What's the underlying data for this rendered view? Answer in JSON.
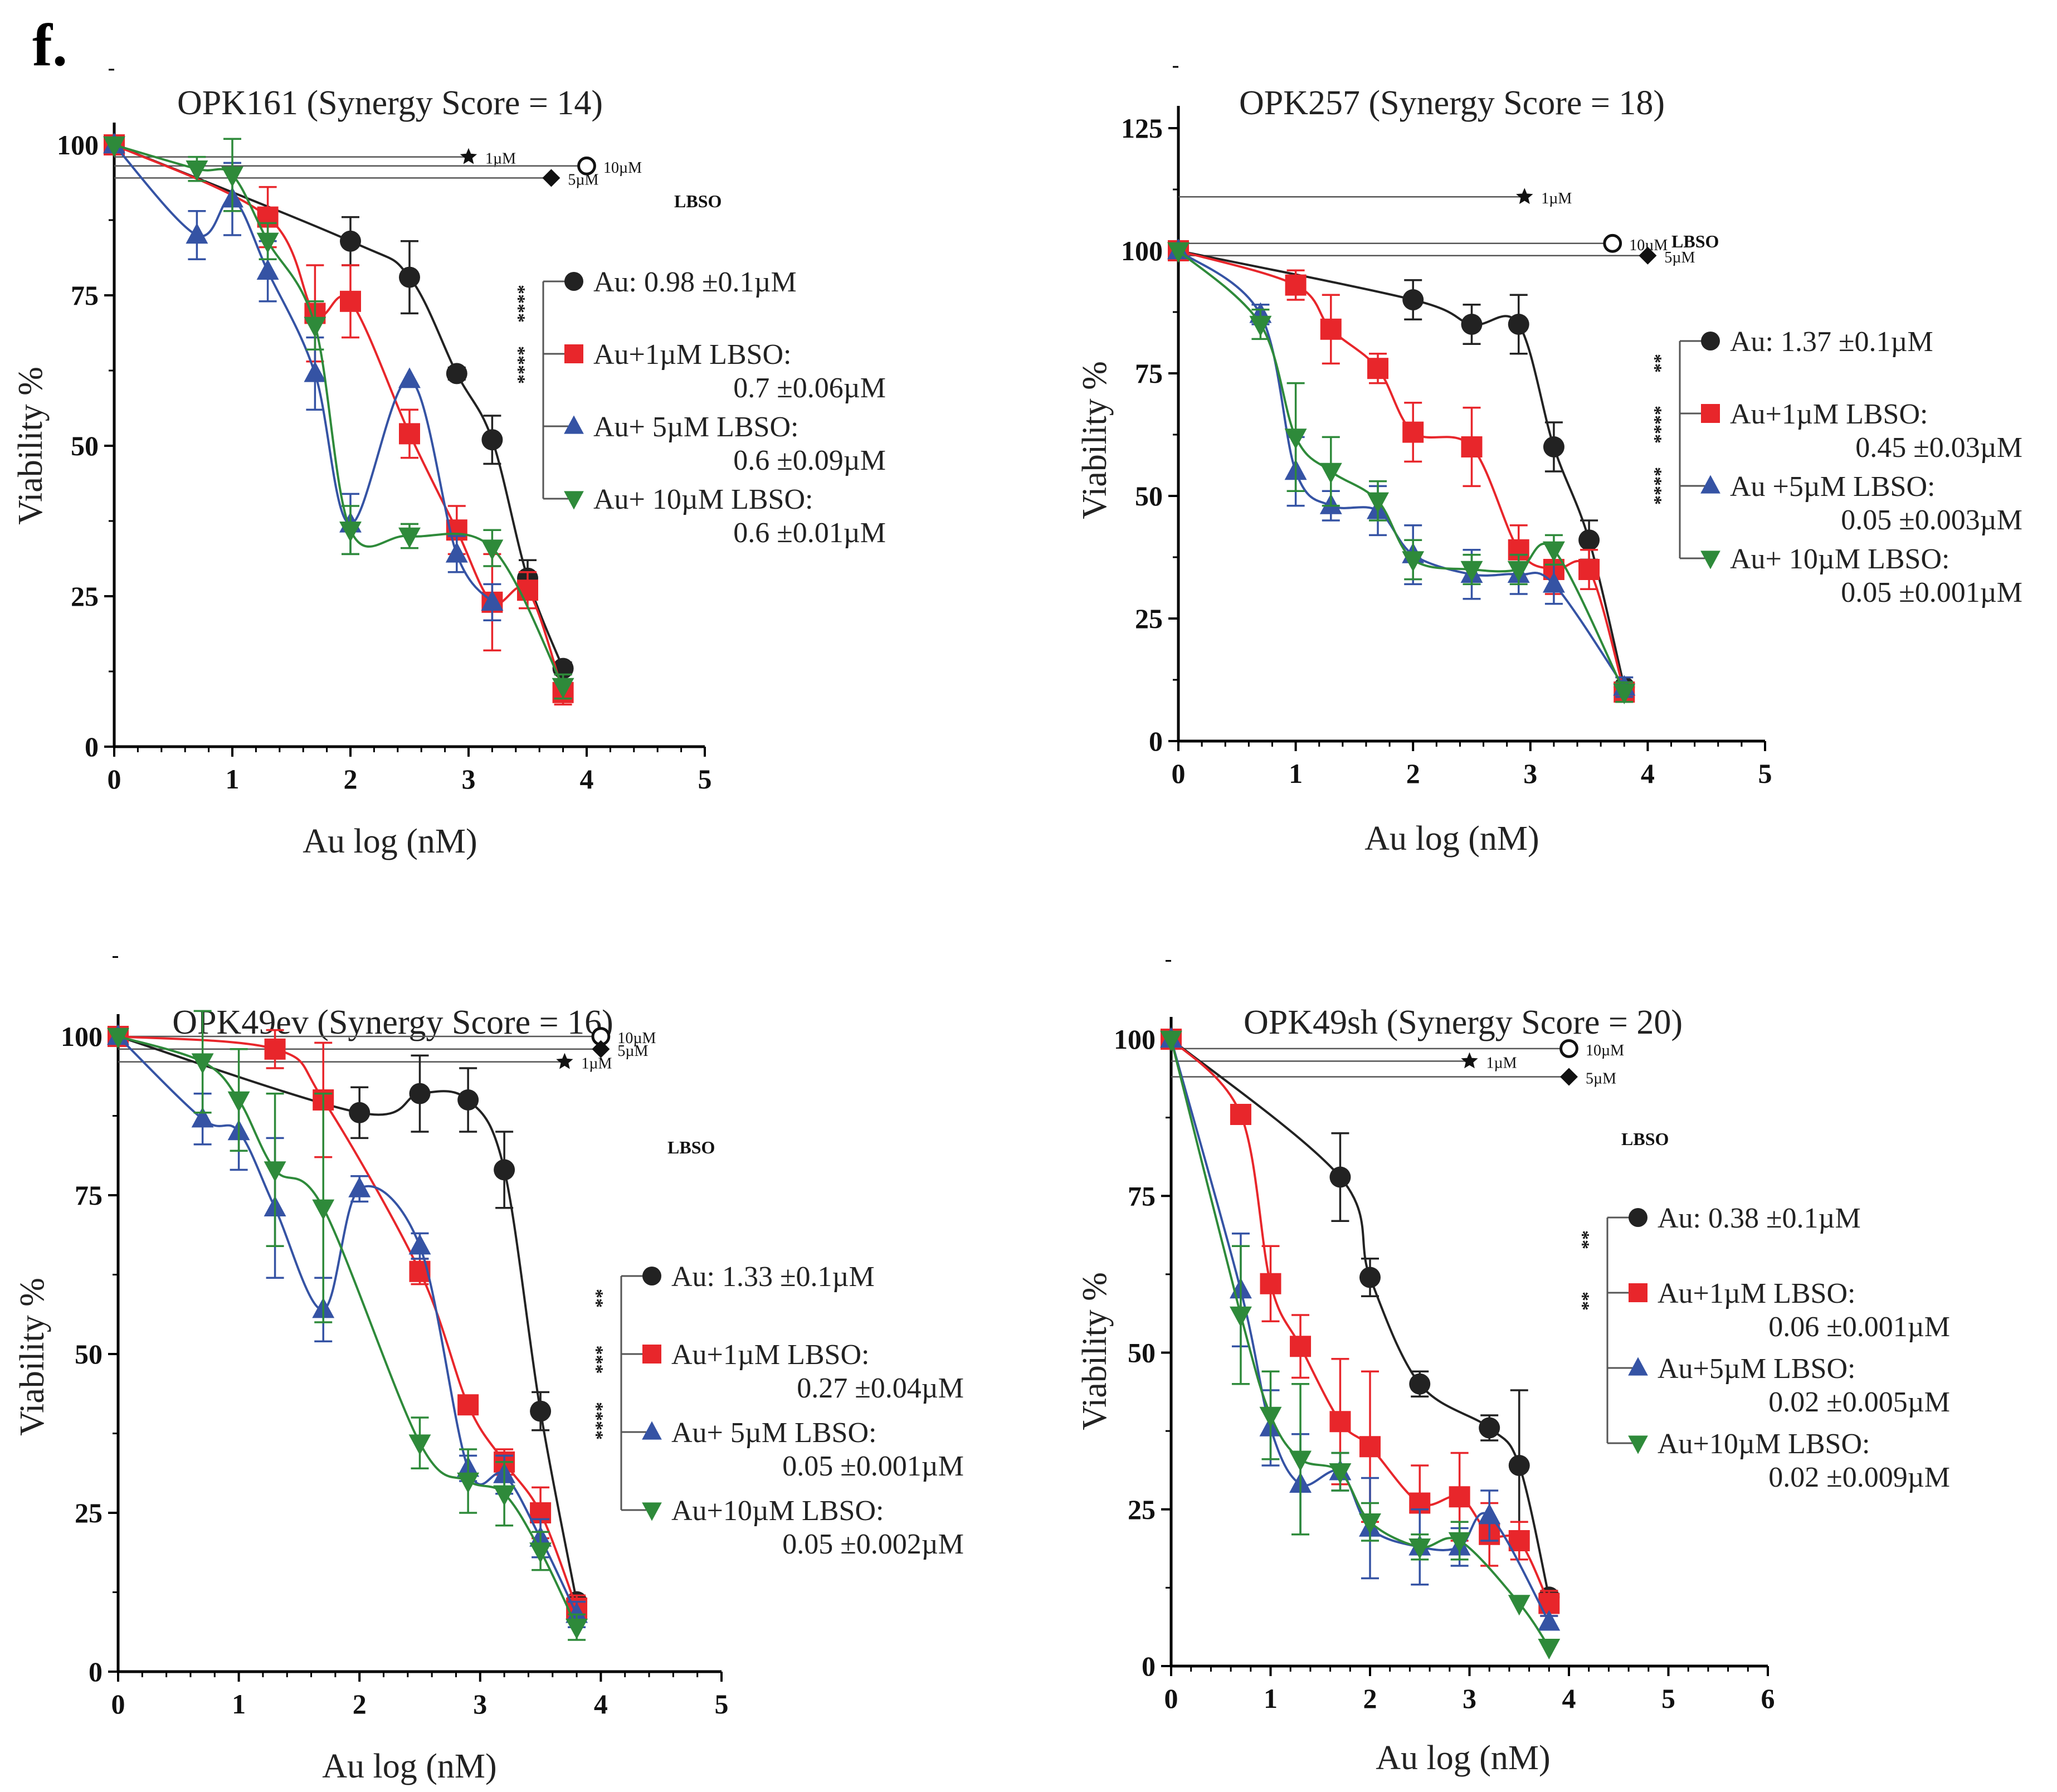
{
  "panel_label": "f.",
  "colors": {
    "au": "#222222",
    "lbso1": "#e8262b",
    "lbso5": "#3553a4",
    "lbso10": "#2e8a3a",
    "axis": "#000000",
    "ref": "#555555"
  },
  "chart_data": [
    {
      "type": "line",
      "title": "OPK161 (Synergy Score = 14)",
      "xlabel": "Au log (nM)",
      "ylabel": "Viability %",
      "xlim": [
        0,
        5
      ],
      "ylim": [
        0,
        100
      ],
      "xticks": [
        "0",
        "1",
        "2",
        "3",
        "4",
        "5"
      ],
      "yticks": [
        "0",
        "25",
        "50",
        "75",
        "100"
      ],
      "series": [
        {
          "name": "Au",
          "marker": "circle",
          "x": [
            0,
            2,
            2.5,
            2.9,
            3.2,
            3.5,
            3.8
          ],
          "y": [
            100,
            84,
            78,
            62,
            51,
            28,
            13
          ],
          "err": [
            0,
            4,
            6,
            1,
            4,
            3,
            1
          ]
        },
        {
          "name": "Au+1µM LBSO",
          "marker": "square",
          "x": [
            0,
            1.3,
            1.7,
            2,
            2.5,
            2.9,
            3.2,
            3.5,
            3.8
          ],
          "y": [
            100,
            88,
            72,
            74,
            52,
            36,
            24,
            26,
            9
          ],
          "err": [
            0,
            5,
            8,
            6,
            4,
            4,
            8,
            3,
            2
          ]
        },
        {
          "name": "Au+ 5µM LBSO",
          "marker": "triangle",
          "x": [
            0,
            0.7,
            1,
            1.3,
            1.7,
            2,
            2.5,
            2.9,
            3.2
          ],
          "y": [
            100,
            85,
            91,
            79,
            62,
            37,
            61,
            32,
            24
          ],
          "err": [
            0,
            4,
            6,
            5,
            6,
            5,
            0,
            3,
            3
          ]
        },
        {
          "name": "Au+ 10µM LBSO",
          "marker": "triangle-down",
          "x": [
            0,
            0.7,
            1,
            1.3,
            1.7,
            2,
            2.5,
            3.2,
            3.8
          ],
          "y": [
            100,
            96,
            95,
            84,
            70,
            36,
            35,
            33,
            10
          ],
          "err": [
            0,
            2,
            6,
            3,
            4,
            4,
            2,
            3,
            2
          ]
        }
      ],
      "lbso_refs": [
        {
          "label": "1µM",
          "marker": "star",
          "x": 3,
          "y": 98
        },
        {
          "label": "10µM",
          "marker": "open-circle",
          "x": 4,
          "y": 96.5
        },
        {
          "label": "5µM",
          "marker": "diamond",
          "x": 3.7,
          "y": 94.5
        }
      ],
      "lbso_label": "LBSO",
      "legend": [
        {
          "value": "Au: 0.98 ±0.1µM"
        },
        {
          "value": "Au+1µM LBSO:",
          "sub": "0.7 ±0.06µM"
        },
        {
          "value": "Au+ 5µM LBSO:",
          "sub": "0.6 ±0.09µM"
        },
        {
          "value": "Au+ 10µM LBSO:",
          "sub": "0.6 ±0.01µM"
        }
      ],
      "significance": [
        "****",
        "****"
      ]
    },
    {
      "type": "line",
      "title": "OPK257 (Synergy Score = 18)",
      "xlabel": "Au log (nM)",
      "ylabel": "Viability %",
      "xlim": [
        0,
        5
      ],
      "ylim": [
        0,
        125
      ],
      "xticks": [
        "0",
        "1",
        "2",
        "3",
        "4",
        "5"
      ],
      "yticks": [
        "0",
        "25",
        "50",
        "75",
        "100",
        "125"
      ],
      "series": [
        {
          "name": "Au",
          "marker": "circle",
          "x": [
            0,
            2,
            2.5,
            2.9,
            3.2,
            3.5,
            3.8
          ],
          "y": [
            100,
            90,
            85,
            85,
            60,
            41,
            11
          ],
          "err": [
            0,
            4,
            4,
            6,
            5,
            4,
            1
          ]
        },
        {
          "name": "Au+1µM LBSO",
          "marker": "square",
          "x": [
            0,
            1,
            1.3,
            1.7,
            2,
            2.5,
            2.9,
            3.2,
            3.5,
            3.8
          ],
          "y": [
            100,
            93,
            84,
            76,
            63,
            60,
            39,
            35,
            35,
            10
          ],
          "err": [
            0,
            3,
            7,
            3,
            6,
            8,
            5,
            5,
            4,
            2
          ]
        },
        {
          "name": "Au +5µM LBSO",
          "marker": "triangle",
          "x": [
            0,
            0.7,
            1,
            1.3,
            1.7,
            2,
            2.5,
            2.9,
            3.2,
            3.8
          ],
          "y": [
            100,
            87,
            55,
            48,
            47,
            38,
            34,
            34,
            32,
            11
          ],
          "err": [
            0,
            2,
            7,
            3,
            5,
            6,
            5,
            4,
            4,
            2
          ]
        },
        {
          "name": "Au+ 10µM LBSO",
          "marker": "triangle-down",
          "x": [
            0,
            0.7,
            1,
            1.3,
            1.7,
            2,
            2.5,
            2.9,
            3.2,
            3.8
          ],
          "y": [
            100,
            85,
            62,
            55,
            49,
            37,
            35,
            35,
            39,
            10
          ],
          "err": [
            0,
            3,
            11,
            7,
            4,
            4,
            3,
            3,
            3,
            2
          ]
        }
      ],
      "lbso_refs": [
        {
          "label": "1µM",
          "marker": "star",
          "x": 2.95,
          "y": 111
        },
        {
          "label": "10µM",
          "marker": "open-circle",
          "x": 3.7,
          "y": 101.5
        },
        {
          "label": "5µM",
          "marker": "diamond",
          "x": 4,
          "y": 99
        }
      ],
      "lbso_label": "LBSO",
      "legend": [
        {
          "value": "Au: 1.37 ±0.1µM"
        },
        {
          "value": "Au+1µM LBSO:",
          "sub": "0.45 ±0.03µM"
        },
        {
          "value": "Au +5µM LBSO:",
          "sub": "0.05 ±0.003µM"
        },
        {
          "value": "Au+ 10µM LBSO:",
          "sub": "0.05 ±0.001µM"
        }
      ],
      "significance": [
        "**",
        "****",
        "****"
      ]
    },
    {
      "type": "line",
      "title": "OPK49ev (Synergy Score = 16)",
      "xlabel": "Au log (nM)",
      "ylabel": "Viability %",
      "xlim": [
        0,
        5
      ],
      "ylim": [
        0,
        100
      ],
      "xticks": [
        "0",
        "1",
        "2",
        "3",
        "4",
        "5"
      ],
      "yticks": [
        "0",
        "25",
        "50",
        "75",
        "100"
      ],
      "series": [
        {
          "name": "Au",
          "marker": "circle",
          "x": [
            0,
            2,
            2.5,
            2.9,
            3.2,
            3.5,
            3.8
          ],
          "y": [
            100,
            88,
            91,
            90,
            79,
            41,
            11
          ],
          "err": [
            0,
            4,
            6,
            5,
            6,
            3,
            1
          ]
        },
        {
          "name": "Au+1µM LBSO",
          "marker": "square",
          "x": [
            0,
            1.3,
            1.7,
            2.5,
            2.9,
            3.2,
            3.5,
            3.8
          ],
          "y": [
            100,
            98,
            90,
            63,
            42,
            33,
            25,
            10
          ],
          "err": [
            0,
            3,
            9,
            2,
            1,
            2,
            4,
            2
          ]
        },
        {
          "name": "Au+ 5µM LBSO",
          "marker": "triangle",
          "x": [
            0,
            0.7,
            1,
            1.3,
            1.7,
            2,
            2.5,
            2.9,
            3.2,
            3.5,
            3.8
          ],
          "y": [
            100,
            87,
            85,
            73,
            57,
            76,
            67,
            32,
            31,
            21,
            9
          ],
          "err": [
            0,
            4,
            6,
            11,
            5,
            2,
            2,
            2,
            3,
            3,
            2
          ]
        },
        {
          "name": "Au+10µM LBSO",
          "marker": "triangle-down",
          "x": [
            0,
            0.7,
            1,
            1.3,
            1.7,
            2.5,
            2.9,
            3.2,
            3.5,
            3.8
          ],
          "y": [
            100,
            96,
            90,
            79,
            73,
            36,
            30,
            28,
            19,
            7
          ],
          "err": [
            0,
            8,
            8,
            12,
            18,
            4,
            5,
            5,
            3,
            2
          ]
        }
      ],
      "lbso_refs": [
        {
          "label": "10µM",
          "marker": "open-circle",
          "x": 4,
          "y": 100
        },
        {
          "label": "5µM",
          "marker": "diamond",
          "x": 4,
          "y": 98
        },
        {
          "label": "1µM",
          "marker": "star",
          "x": 3.7,
          "y": 96
        }
      ],
      "lbso_label": "LBSO",
      "legend": [
        {
          "value": "Au: 1.33 ±0.1µM"
        },
        {
          "value": "Au+1µM LBSO:",
          "sub": "0.27 ±0.04µM"
        },
        {
          "value": "Au+ 5µM LBSO:",
          "sub": "0.05 ±0.001µM"
        },
        {
          "value": "Au+10µM LBSO:",
          "sub": "0.05 ±0.002µM"
        }
      ],
      "significance": [
        "**",
        "***",
        "****"
      ]
    },
    {
      "type": "line",
      "title": "OPK49sh (Synergy Score = 20)",
      "xlabel": "Au log (nM)",
      "ylabel": "Viability %",
      "xlim": [
        0,
        6
      ],
      "ylim": [
        0,
        100
      ],
      "xticks": [
        "0",
        "1",
        "2",
        "3",
        "4",
        "5",
        "6"
      ],
      "yticks": [
        "0",
        "25",
        "50",
        "75",
        "100"
      ],
      "series": [
        {
          "name": "Au",
          "marker": "circle",
          "x": [
            0,
            1.7,
            2,
            2.5,
            3.2,
            3.5,
            3.8
          ],
          "y": [
            100,
            78,
            62,
            45,
            38,
            32,
            11
          ],
          "err": [
            0,
            7,
            3,
            2,
            2,
            12,
            1
          ]
        },
        {
          "name": "Au+1µM LBSO",
          "marker": "square",
          "x": [
            0,
            0.7,
            1,
            1.3,
            1.7,
            2,
            2.5,
            2.9,
            3.2,
            3.5,
            3.8
          ],
          "y": [
            100,
            88,
            61,
            51,
            39,
            35,
            26,
            27,
            21,
            20,
            10
          ],
          "err": [
            0,
            0,
            6,
            5,
            10,
            12,
            6,
            7,
            5,
            3,
            2
          ]
        },
        {
          "name": "Au+5µM LBSO",
          "marker": "triangle",
          "x": [
            0,
            0.7,
            1,
            1.3,
            1.7,
            2,
            2.5,
            2.9,
            3.2,
            3.8
          ],
          "y": [
            100,
            60,
            38,
            29,
            31,
            22,
            19,
            19,
            24,
            7
          ],
          "err": [
            0,
            9,
            6,
            8,
            3,
            8,
            6,
            3,
            4,
            1
          ]
        },
        {
          "name": "Au+10µM LBSO",
          "marker": "triangle-down",
          "x": [
            0,
            0.7,
            1,
            1.3,
            1.7,
            2,
            2.5,
            2.9,
            3.5,
            3.8
          ],
          "y": [
            100,
            56,
            40,
            33,
            31,
            23,
            19,
            20,
            10,
            3
          ],
          "err": [
            0,
            11,
            7,
            12,
            3,
            3,
            2,
            3,
            0,
            0
          ]
        }
      ],
      "lbso_refs": [
        {
          "label": "10µM",
          "marker": "open-circle",
          "x": 4,
          "y": 98.5
        },
        {
          "label": "1µM",
          "marker": "star",
          "x": 3,
          "y": 96.5
        },
        {
          "label": "5µM",
          "marker": "diamond",
          "x": 4,
          "y": 94
        }
      ],
      "lbso_label": "LBSO",
      "legend": [
        {
          "value": "Au: 0.38 ±0.1µM"
        },
        {
          "value": "Au+1µM LBSO:",
          "sub": "0.06 ±0.001µM"
        },
        {
          "value": "Au+5µM LBSO:",
          "sub": "0.02 ±0.005µM"
        },
        {
          "value": "Au+10µM LBSO:",
          "sub": "0.02 ±0.009µM"
        }
      ],
      "significance": [
        "**",
        "**"
      ]
    }
  ]
}
